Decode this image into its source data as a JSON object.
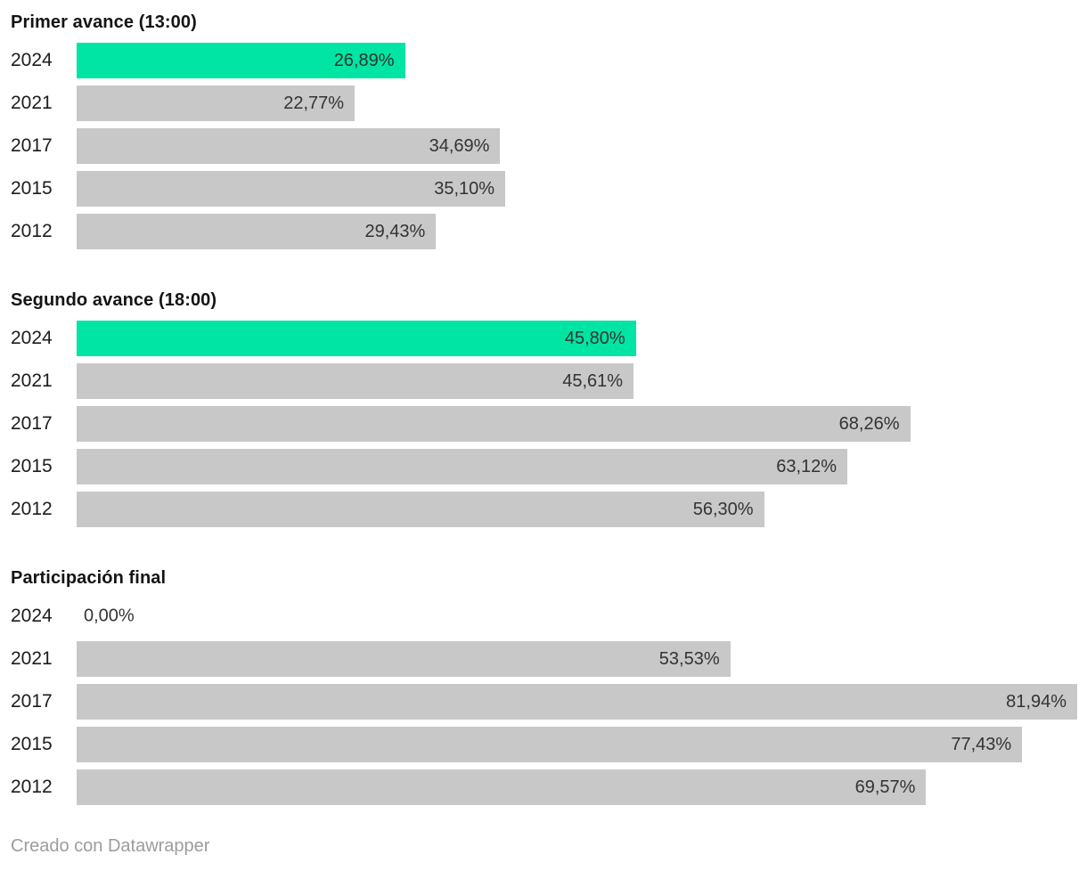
{
  "chart_data": {
    "type": "bar",
    "orientation": "horizontal",
    "unit": "%",
    "decimal_separator": ",",
    "categories": [
      "2024",
      "2021",
      "2017",
      "2015",
      "2012"
    ],
    "highlight_category": "2024",
    "xmax": 81.94,
    "grid": false,
    "legend": "none",
    "sections": [
      {
        "title": "Primer avance (13:00)",
        "values": [
          26.89,
          22.77,
          34.69,
          35.1,
          29.43
        ],
        "value_labels": [
          "26,89%",
          "22,77%",
          "34,69%",
          "35,10%",
          "29,43%"
        ]
      },
      {
        "title": "Segundo avance (18:00)",
        "values": [
          45.8,
          45.61,
          68.26,
          63.12,
          56.3
        ],
        "value_labels": [
          "45,80%",
          "45,61%",
          "68,26%",
          "63,12%",
          "56,30%"
        ]
      },
      {
        "title": "Participación final",
        "values": [
          0.0,
          53.53,
          81.94,
          77.43,
          69.57
        ],
        "value_labels": [
          "0,00%",
          "53,53%",
          "81,94%",
          "77,43%",
          "69,57%"
        ]
      }
    ]
  },
  "colors": {
    "highlight_bar": "#00e5a3",
    "default_bar": "#c8c8c8",
    "title_text": "#141414",
    "category_text": "#1c1c1c",
    "value_text": "#333333",
    "footer_text": "#9c9c9c"
  },
  "footer": {
    "credit": "Creado con Datawrapper"
  }
}
